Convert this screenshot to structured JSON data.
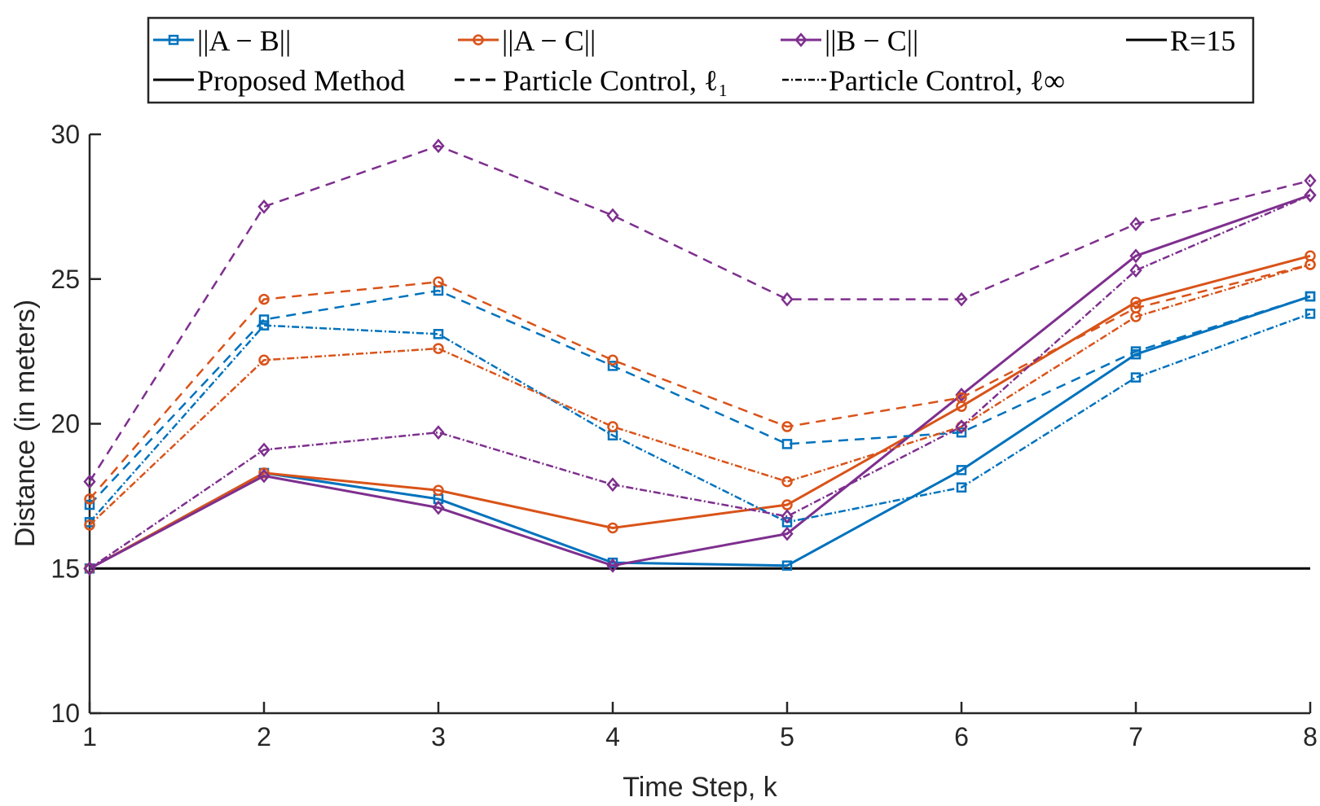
{
  "chart_data": {
    "type": "line",
    "title": "",
    "xlabel": "Time Step, k",
    "ylabel": "Distance (in meters)",
    "x": [
      1,
      2,
      3,
      4,
      5,
      6,
      7,
      8
    ],
    "xlim": [
      1,
      8
    ],
    "ylim": [
      10,
      30
    ],
    "xticks": [
      "1",
      "2",
      "3",
      "4",
      "5",
      "6",
      "7",
      "8"
    ],
    "yticks": [
      "10",
      "15",
      "20",
      "25",
      "30"
    ],
    "grid": false,
    "legend_position": "top (outside)",
    "colors": {
      "AB": "#0072BD",
      "AC": "#D95319",
      "BC": "#7E2F8E",
      "R": "#000000"
    },
    "legend": {
      "pairs": [
        {
          "id": "AB",
          "label": "||A − B||",
          "marker": "square"
        },
        {
          "id": "AC",
          "label": "||A − C||",
          "marker": "circle"
        },
        {
          "id": "BC",
          "label": "||B − C||",
          "marker": "diamond"
        }
      ],
      "reference": {
        "label": "R=15"
      },
      "methods": [
        {
          "id": "proposed",
          "label": "Proposed Method",
          "style": "solid"
        },
        {
          "id": "pc_l1",
          "label": "Particle Control, ℓ₁",
          "style": "dashed"
        },
        {
          "id": "pc_linf",
          "label": "Particle Control, ℓ∞",
          "style": "dashdot"
        }
      ]
    },
    "reference_line": {
      "label": "R=15",
      "y": 15
    },
    "series": [
      {
        "name": "||A−B|| Proposed Method",
        "pair": "AB",
        "method": "proposed",
        "values": [
          15.0,
          18.3,
          17.4,
          15.2,
          15.1,
          18.4,
          22.4,
          24.4
        ]
      },
      {
        "name": "||A−C|| Proposed Method",
        "pair": "AC",
        "method": "proposed",
        "values": [
          15.0,
          18.3,
          17.7,
          16.4,
          17.2,
          20.6,
          24.2,
          25.8
        ]
      },
      {
        "name": "||B−C|| Proposed Method",
        "pair": "BC",
        "method": "proposed",
        "values": [
          15.0,
          18.2,
          17.1,
          15.1,
          16.2,
          21.0,
          25.8,
          27.9
        ]
      },
      {
        "name": "||A−B|| Particle Control, l1",
        "pair": "AB",
        "method": "pc_l1",
        "values": [
          17.2,
          23.6,
          24.6,
          22.0,
          19.3,
          19.7,
          22.5,
          24.4
        ]
      },
      {
        "name": "||A−C|| Particle Control, l1",
        "pair": "AC",
        "method": "pc_l1",
        "values": [
          17.4,
          24.3,
          24.9,
          22.2,
          19.9,
          20.9,
          24.0,
          25.5
        ]
      },
      {
        "name": "||B−C|| Particle Control, l1",
        "pair": "BC",
        "method": "pc_l1",
        "values": [
          18.0,
          27.5,
          29.6,
          27.2,
          24.3,
          24.3,
          26.9,
          28.4
        ]
      },
      {
        "name": "||A−B|| Particle Control, linf",
        "pair": "AB",
        "method": "pc_linf",
        "values": [
          16.6,
          23.4,
          23.1,
          19.6,
          16.6,
          17.8,
          21.6,
          23.8
        ]
      },
      {
        "name": "||A−C|| Particle Control, linf",
        "pair": "AC",
        "method": "pc_linf",
        "values": [
          16.5,
          22.2,
          22.6,
          19.9,
          18.0,
          19.9,
          23.7,
          25.5
        ]
      },
      {
        "name": "||B−C|| Particle Control, linf",
        "pair": "BC",
        "method": "pc_linf",
        "values": [
          15.0,
          19.1,
          19.7,
          17.9,
          16.8,
          19.9,
          25.3,
          27.9
        ]
      }
    ]
  }
}
